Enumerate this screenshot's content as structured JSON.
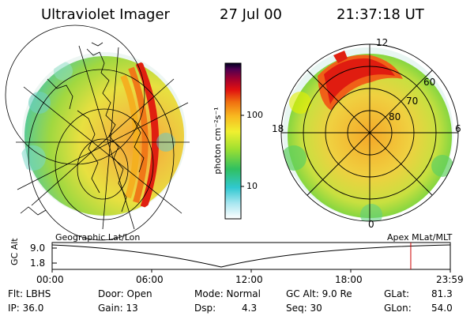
{
  "header": {
    "instrument": "Ultraviolet Imager",
    "date": "27 Jul 00",
    "time": "21:37:18 UT"
  },
  "left_panel": {
    "label": "Geographic Lat/Lon"
  },
  "right_panel": {
    "label": "Apex MLat/MLT",
    "mlt_labels": [
      "12",
      "18",
      "6",
      "0"
    ],
    "lat_labels": [
      "60",
      "70",
      "80"
    ]
  },
  "colorbar": {
    "unit": "photon cm⁻²s⁻¹",
    "tick_labels": [
      "100",
      "10"
    ],
    "scale": "log"
  },
  "timeline": {
    "ylabel": "GC Alt",
    "y_ticks": [
      "9.0",
      "1.8"
    ],
    "x_ticks": [
      "00:00",
      "06:00",
      "12:00",
      "18:00",
      "23:59"
    ],
    "marker_time": "21:37",
    "marker_color": "#cc0000"
  },
  "status": {
    "flt": "Flt: LBHS",
    "ip": "IP: 36.0",
    "door": "Door: Open",
    "gain": "Gain: 13",
    "mode": "Mode: Normal",
    "dsp_label": "Dsp:",
    "dsp_value": "4.3",
    "gc_alt": "GC Alt: 9.0 Re",
    "seq": "Seq: 30",
    "glat_label": "GLat:",
    "glat_value": "81.3",
    "glon_label": "GLon:",
    "glon_value": "54.0"
  }
}
